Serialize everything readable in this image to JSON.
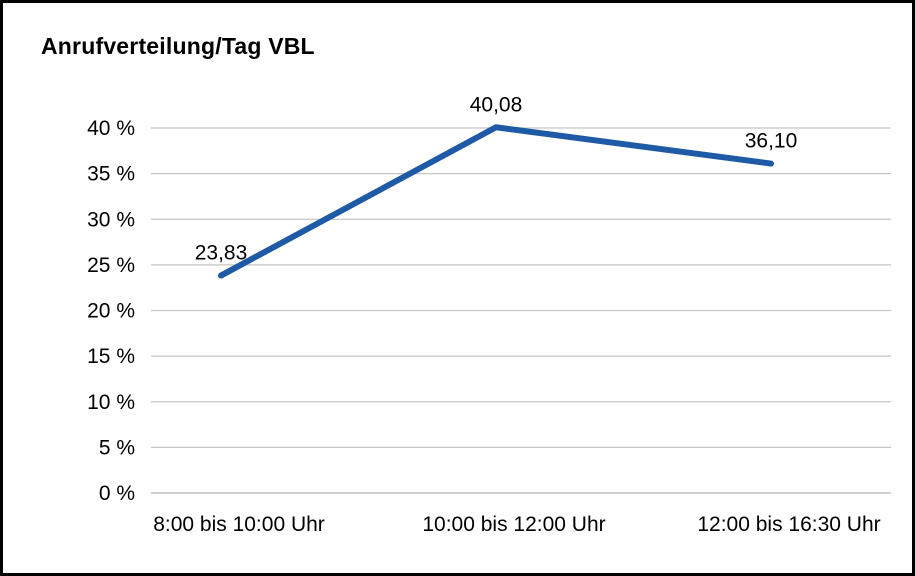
{
  "chart_data": {
    "type": "line",
    "title": "Anrufverteilung/Tag VBL",
    "categories": [
      "8:00 bis 10:00 Uhr",
      "10:00 bis 12:00 Uhr",
      "12:00 bis 16:30 Uhr"
    ],
    "values": [
      23.83,
      40.08,
      36.1
    ],
    "data_labels": [
      "23,83",
      "40,08",
      "36,10"
    ],
    "xlabel": "",
    "ylabel": "",
    "ylim": [
      0,
      40
    ],
    "ytick_step": 5,
    "ytick_suffix": " %",
    "ytick_labels": [
      "0 %",
      "5 %",
      "10 %",
      "15 %",
      "20 %",
      "25 %",
      "30 %",
      "35 %",
      "40 %"
    ],
    "grid": "horizontal",
    "legend": "none",
    "line_color": "#1e5aa5",
    "grid_color": "#c6c6c6",
    "axis_line_color": "#b5b5b5",
    "text_color": "#000000",
    "background_color": "#ffffff"
  }
}
